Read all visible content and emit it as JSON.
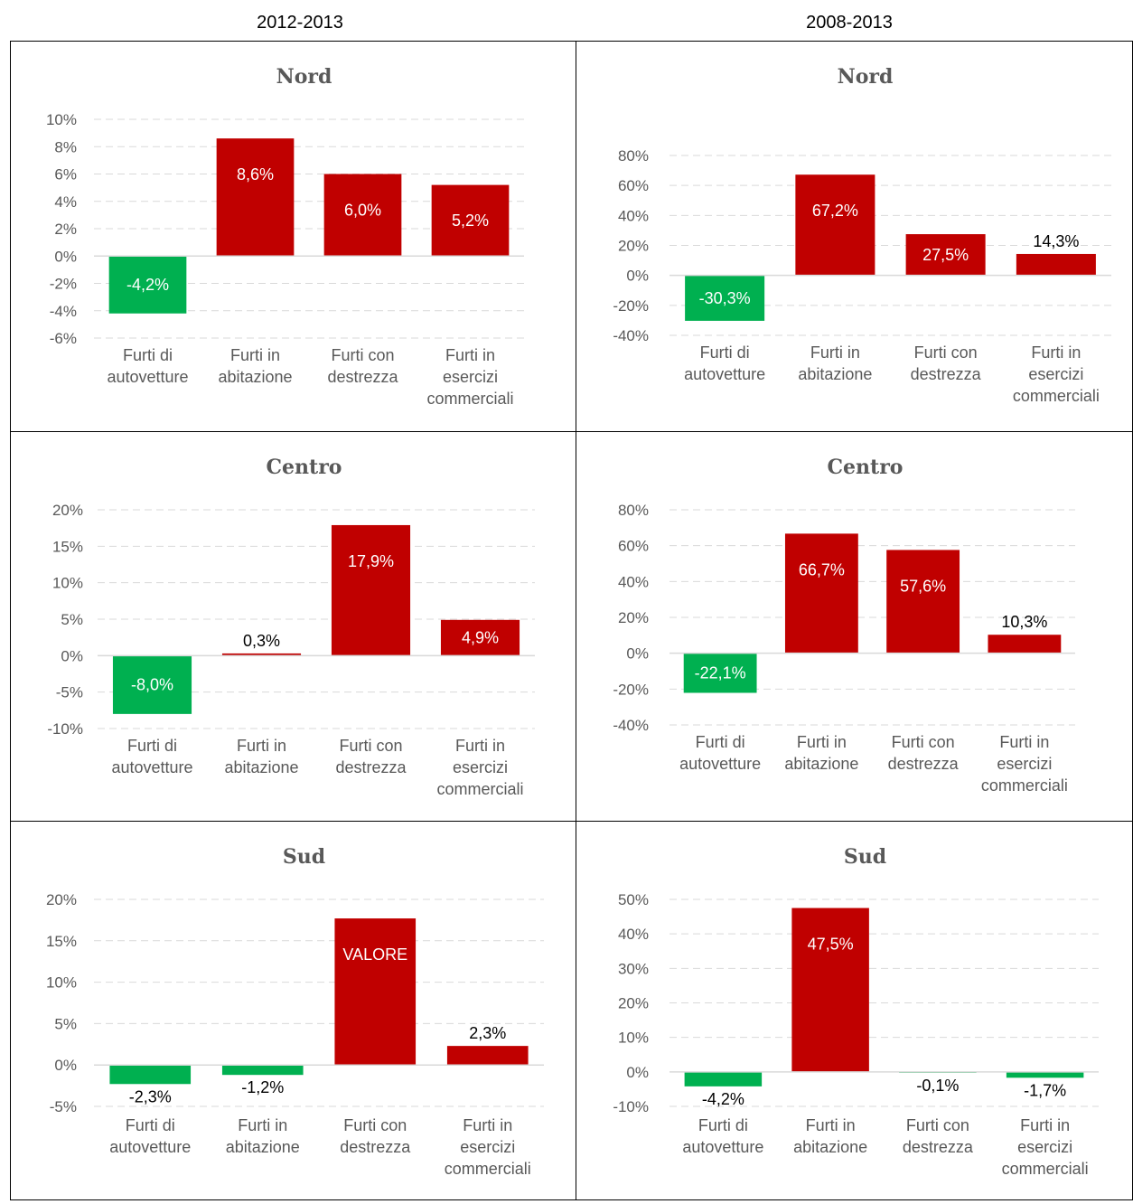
{
  "headers": {
    "left": "2012-2013",
    "right": "2008-2013"
  },
  "colors": {
    "positive": "#C00000",
    "negative": "#00B050",
    "gridline": "#D9D9D9",
    "axis": "#595959"
  },
  "chart_data": [
    {
      "type": "bar",
      "title": "Nord",
      "period": "2012-2013",
      "categories": [
        [
          "Furti di",
          "autovetture"
        ],
        [
          "Furti in",
          "abitazione"
        ],
        [
          "Furti con",
          "destrezza"
        ],
        [
          "Furti in",
          "esercizi",
          "commerciali"
        ]
      ],
      "values": [
        -4.2,
        8.6,
        6.0,
        5.2
      ],
      "labels": [
        "-4,2%",
        "8,6%",
        "6,0%",
        "5,2%"
      ],
      "ylim": [
        -6,
        10
      ],
      "yticks": [
        10,
        8,
        6,
        4,
        2,
        0,
        -2,
        -4,
        -6
      ],
      "ytick_labels": [
        "10%",
        "8%",
        "6%",
        "4%",
        "2%",
        "0%",
        "-2%",
        "-4%",
        "-6%"
      ]
    },
    {
      "type": "bar",
      "title": "Nord",
      "period": "2008-2013",
      "categories": [
        [
          "Furti di",
          "autovetture"
        ],
        [
          "Furti in",
          "abitazione"
        ],
        [
          "Furti con",
          "destrezza"
        ],
        [
          "Furti in",
          "esercizi",
          "commerciali"
        ]
      ],
      "values": [
        -30.3,
        67.2,
        27.5,
        14.3
      ],
      "labels": [
        "-30,3%",
        "67,2%",
        "27,5%",
        "14,3%"
      ],
      "ylim": [
        -40,
        80
      ],
      "yticks": [
        80,
        60,
        40,
        20,
        0,
        -20,
        -40
      ],
      "ytick_labels": [
        "80%",
        "60%",
        "40%",
        "20%",
        "0%",
        "-20%",
        "-40%"
      ]
    },
    {
      "type": "bar",
      "title": "Centro",
      "period": "2012-2013",
      "categories": [
        [
          "Furti di",
          "autovetture"
        ],
        [
          "Furti in",
          "abitazione"
        ],
        [
          "Furti con",
          "destrezza"
        ],
        [
          "Furti in",
          "esercizi",
          "commerciali"
        ]
      ],
      "values": [
        -8.0,
        0.3,
        17.9,
        4.9
      ],
      "labels": [
        "-8,0%",
        "0,3%",
        "17,9%",
        "4,9%"
      ],
      "ylim": [
        -10,
        20
      ],
      "yticks": [
        20,
        15,
        10,
        5,
        0,
        -5,
        -10
      ],
      "ytick_labels": [
        "20%",
        "15%",
        "10%",
        "5%",
        "0%",
        "-5%",
        "-10%"
      ]
    },
    {
      "type": "bar",
      "title": "Centro",
      "period": "2008-2013",
      "categories": [
        [
          "Furti di",
          "autovetture"
        ],
        [
          "Furti in",
          "abitazione"
        ],
        [
          "Furti con",
          "destrezza"
        ],
        [
          "Furti in",
          "esercizi",
          "commerciali"
        ]
      ],
      "values": [
        -22.1,
        66.7,
        57.6,
        10.3
      ],
      "labels": [
        "-22,1%",
        "66,7%",
        "57,6%",
        "10,3%"
      ],
      "ylim": [
        -40,
        80
      ],
      "yticks": [
        80,
        60,
        40,
        20,
        0,
        -20,
        -40
      ],
      "ytick_labels": [
        "80%",
        "60%",
        "40%",
        "20%",
        "0%",
        "-20%",
        "-40%"
      ]
    },
    {
      "type": "bar",
      "title": "Sud",
      "period": "2012-2013",
      "categories": [
        [
          "Furti di",
          "autovetture"
        ],
        [
          "Furti in",
          "abitazione"
        ],
        [
          "Furti con",
          "destrezza"
        ],
        [
          "Furti in",
          "esercizi",
          "commerciali"
        ]
      ],
      "values": [
        -2.3,
        -1.2,
        17.7,
        2.3
      ],
      "labels": [
        "-2,3%",
        "-1,2%",
        "VALORE",
        "2,3%"
      ],
      "ylim": [
        -5,
        20
      ],
      "yticks": [
        20,
        15,
        10,
        5,
        0,
        -5
      ],
      "ytick_labels": [
        "20%",
        "15%",
        "10%",
        "5%",
        "0%",
        "-5%"
      ]
    },
    {
      "type": "bar",
      "title": "Sud",
      "period": "2008-2013",
      "categories": [
        [
          "Furti di",
          "autovetture"
        ],
        [
          "Furti in",
          "abitazione"
        ],
        [
          "Furti con",
          "destrezza"
        ],
        [
          "Furti in",
          "esercizi",
          "commerciali"
        ]
      ],
      "values": [
        -4.2,
        47.5,
        -0.1,
        -1.7
      ],
      "labels": [
        "-4,2%",
        "47,5%",
        "-0,1%",
        "-1,7%"
      ],
      "ylim": [
        -10,
        50
      ],
      "yticks": [
        50,
        40,
        30,
        20,
        10,
        0,
        -10
      ],
      "ytick_labels": [
        "50%",
        "40%",
        "30%",
        "20%",
        "10%",
        "0%",
        "-10%"
      ]
    }
  ]
}
